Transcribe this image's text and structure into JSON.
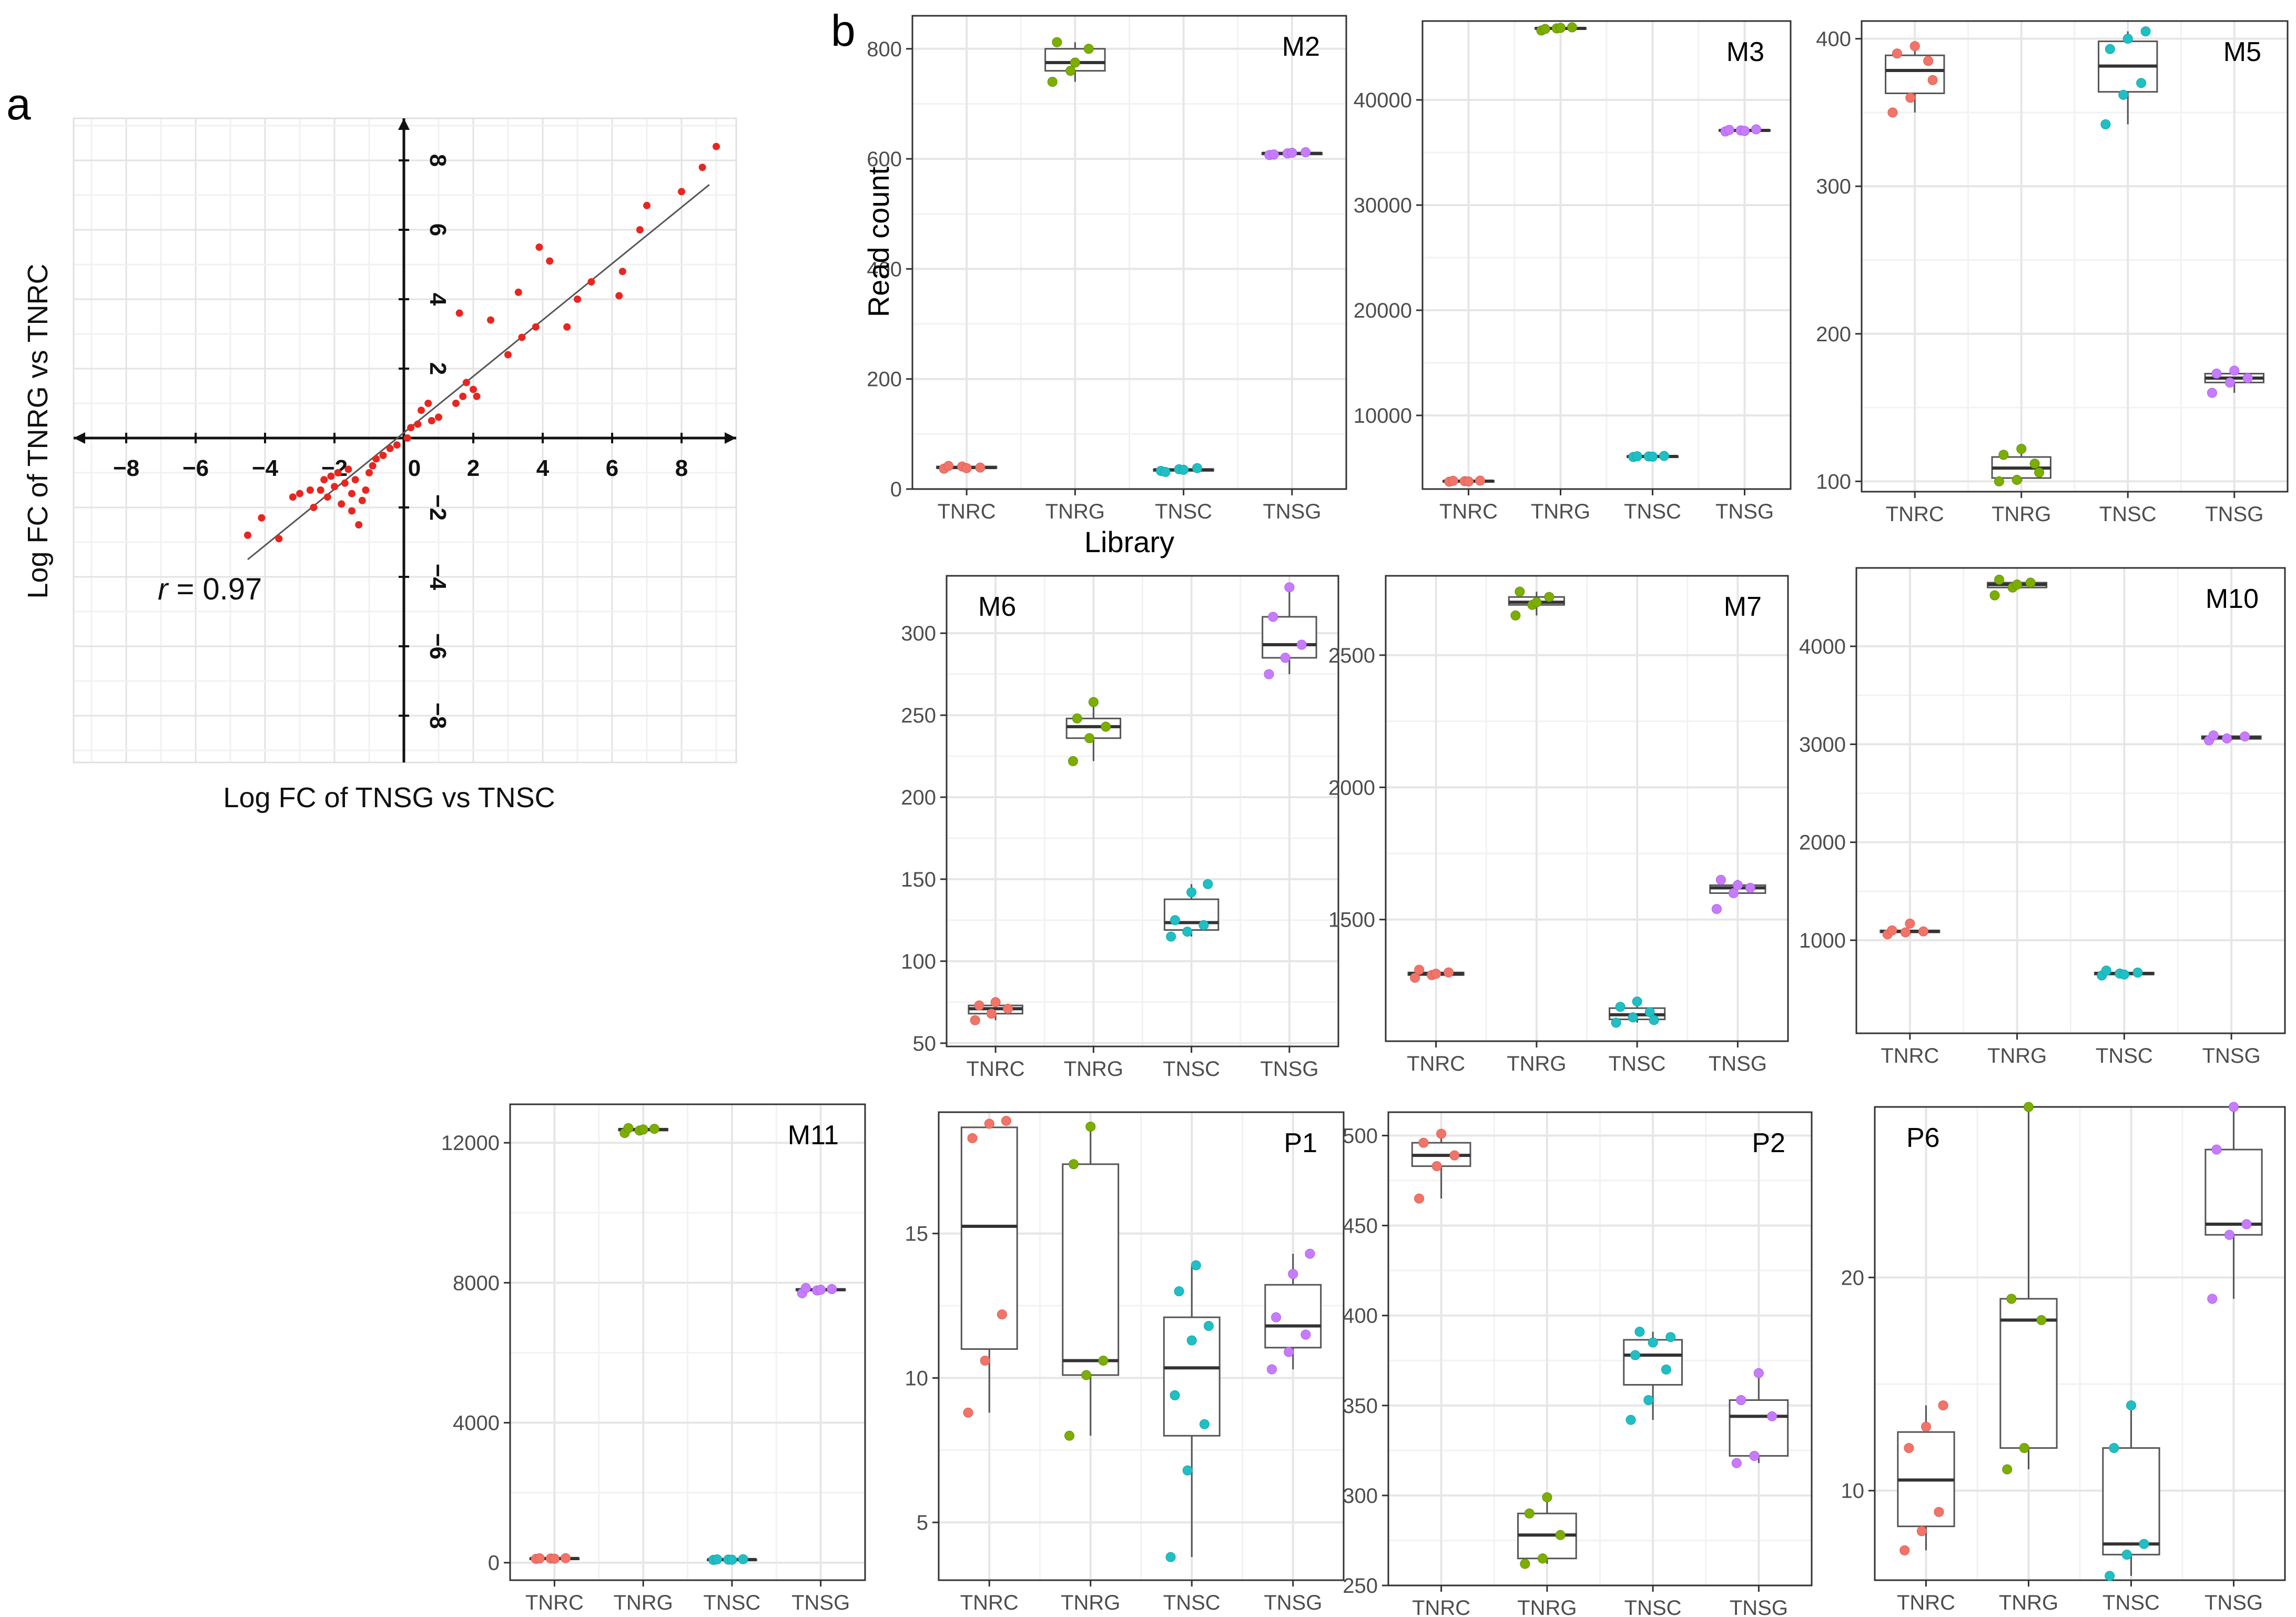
{
  "figure": {
    "panel_a_label": "a",
    "panel_b_label": "b"
  },
  "chart_data": [
    {
      "type": "scatter",
      "panel": "a",
      "title": "",
      "xlabel": "Log FC of TNSG vs TNSC",
      "ylabel": "Log FC of TNRG vs TNRC",
      "xlim": [
        -10,
        9.5
      ],
      "ylim": [
        -9.5,
        9.5
      ],
      "xticks": [
        -8,
        -6,
        -4,
        -2,
        0,
        2,
        4,
        6,
        8
      ],
      "yticks": [
        -8,
        -6,
        -4,
        -2,
        2,
        4,
        6,
        8
      ],
      "tick_labels_x": [
        "−8",
        "−6",
        "−4",
        "−2",
        "0",
        "2",
        "4",
        "6",
        "8"
      ],
      "tick_labels_y": [
        "−8",
        "−6",
        "−4",
        "−2",
        "2",
        "4",
        "6",
        "8"
      ],
      "annotation_r_symbol": "r",
      "annotation_r_value": " = 0.97",
      "regression_line": {
        "from": [
          -4.5,
          -3.5
        ],
        "to": [
          8.8,
          7.3
        ]
      },
      "point_color": "#e8261f",
      "points": [
        [
          -4.5,
          -2.8
        ],
        [
          -4.1,
          -2.3
        ],
        [
          -3.6,
          -2.9
        ],
        [
          -3.2,
          -1.7
        ],
        [
          -3.0,
          -1.6
        ],
        [
          -2.7,
          -1.5
        ],
        [
          -2.6,
          -2.0
        ],
        [
          -2.4,
          -1.5
        ],
        [
          -2.3,
          -1.2
        ],
        [
          -2.2,
          -1.7
        ],
        [
          -2.1,
          -1.1
        ],
        [
          -2.0,
          -1.4
        ],
        [
          -1.9,
          -1.0
        ],
        [
          -1.8,
          -1.9
        ],
        [
          -1.7,
          -1.3
        ],
        [
          -1.6,
          -0.9
        ],
        [
          -1.5,
          -1.6
        ],
        [
          -1.4,
          -1.2
        ],
        [
          -1.3,
          -2.5
        ],
        [
          -1.2,
          -1.8
        ],
        [
          -1.1,
          -1.5
        ],
        [
          -1.0,
          -1.0
        ],
        [
          -0.9,
          -0.8
        ],
        [
          -0.8,
          -0.6
        ],
        [
          -0.6,
          -0.5
        ],
        [
          -0.4,
          -0.3
        ],
        [
          -0.2,
          -0.2
        ],
        [
          0.2,
          0.3
        ],
        [
          0.4,
          0.4
        ],
        [
          0.5,
          0.8
        ],
        [
          0.7,
          1.0
        ],
        [
          0.8,
          0.5
        ],
        [
          1.0,
          0.6
        ],
        [
          1.5,
          1.0
        ],
        [
          1.7,
          1.2
        ],
        [
          1.8,
          1.6
        ],
        [
          2.0,
          1.4
        ],
        [
          2.1,
          1.2
        ],
        [
          1.6,
          3.6
        ],
        [
          2.5,
          3.4
        ],
        [
          3.0,
          2.4
        ],
        [
          3.4,
          2.9
        ],
        [
          3.3,
          4.2
        ],
        [
          3.8,
          3.2
        ],
        [
          4.2,
          5.1
        ],
        [
          4.7,
          3.2
        ],
        [
          5.0,
          4.0
        ],
        [
          5.4,
          4.5
        ],
        [
          6.2,
          4.1
        ],
        [
          6.3,
          4.8
        ],
        [
          6.8,
          6.0
        ],
        [
          7.0,
          6.7
        ],
        [
          8.0,
          7.1
        ],
        [
          8.6,
          7.8
        ],
        [
          9.0,
          8.4
        ],
        [
          3.9,
          5.5
        ],
        [
          -1.5,
          -2.1
        ],
        [
          0.1,
          0.0
        ]
      ]
    },
    {
      "type": "box",
      "panel": "b",
      "title": "M2",
      "xlabel": "Library",
      "ylabel": "Read count",
      "ylim": [
        0,
        860
      ],
      "yticks": [
        0,
        200,
        400,
        600,
        800
      ],
      "categories": [
        "TNRC",
        "TNRG",
        "TNSC",
        "TNSG"
      ],
      "points": [
        [
          37,
          41,
          39,
          42,
          38
        ],
        [
          740,
          760,
          800,
          812,
          775
        ],
        [
          33,
          36,
          38,
          31,
          35
        ],
        [
          607,
          610,
          612,
          608,
          611
        ]
      ]
    },
    {
      "type": "box",
      "panel": "b",
      "title": "M3",
      "xlabel": "",
      "ylabel": "",
      "ylim": [
        3000,
        47500
      ],
      "yticks": [
        10000,
        20000,
        30000,
        40000
      ],
      "categories": [
        "TNRC",
        "TNRG",
        "TNSC",
        "TNSG"
      ],
      "points": [
        [
          3700,
          3750,
          3800,
          3780,
          3720
        ],
        [
          46600,
          46800,
          46900,
          46750,
          46850
        ],
        [
          6050,
          6100,
          6150,
          6120,
          6080
        ],
        [
          37000,
          37100,
          37200,
          37150,
          37050
        ]
      ]
    },
    {
      "type": "box",
      "panel": "b",
      "title": "M5",
      "xlabel": "",
      "ylabel": "",
      "ylim": [
        93,
        412
      ],
      "yticks": [
        100,
        200,
        300,
        400
      ],
      "categories": [
        "TNRC",
        "TNRG",
        "TNSC",
        "TNSG"
      ],
      "points": [
        [
          350,
          360,
          385,
          390,
          395,
          372
        ],
        [
          100,
          101,
          112,
          118,
          122,
          106
        ],
        [
          342,
          362,
          370,
          393,
          400,
          405
        ],
        [
          160,
          167,
          170,
          173,
          175
        ]
      ]
    },
    {
      "type": "box",
      "panel": "b",
      "title": "M6",
      "xlabel": "",
      "ylabel": "",
      "ylim": [
        48,
        335
      ],
      "yticks": [
        50,
        100,
        150,
        200,
        250,
        300
      ],
      "categories": [
        "TNRC",
        "TNRG",
        "TNSC",
        "TNSG"
      ],
      "points": [
        [
          64,
          68,
          71,
          73,
          75
        ],
        [
          222,
          236,
          243,
          248,
          258
        ],
        [
          115,
          118,
          122,
          125,
          142,
          147
        ],
        [
          275,
          285,
          293,
          310,
          328
        ]
      ]
    },
    {
      "type": "box",
      "panel": "b",
      "title": "M7",
      "xlabel": "",
      "ylabel": "",
      "ylim": [
        1040,
        2800
      ],
      "yticks": [
        1500,
        2000,
        2500
      ],
      "categories": [
        "TNRC",
        "TNRG",
        "TNSC",
        "TNSG"
      ],
      "points": [
        [
          1280,
          1290,
          1300,
          1310,
          1295
        ],
        [
          2650,
          2690,
          2720,
          2740,
          2700
        ],
        [
          1110,
          1130,
          1150,
          1170,
          1190,
          1120
        ],
        [
          1540,
          1600,
          1620,
          1650,
          1630
        ]
      ]
    },
    {
      "type": "box",
      "panel": "b",
      "title": "M10",
      "xlabel": "",
      "ylabel": "",
      "ylim": [
        50,
        4800
      ],
      "yticks": [
        1000,
        2000,
        3000,
        4000
      ],
      "categories": [
        "TNRC",
        "TNRG",
        "TNSC",
        "TNSG"
      ],
      "points": [
        [
          1060,
          1080,
          1090,
          1100,
          1170
        ],
        [
          4520,
          4600,
          4650,
          4680,
          4630
        ],
        [
          640,
          660,
          670,
          690,
          650
        ],
        [
          3040,
          3060,
          3080,
          3090
        ]
      ]
    },
    {
      "type": "box",
      "panel": "b",
      "title": "M11",
      "xlabel": "",
      "ylabel": "",
      "ylim": [
        -500,
        13100
      ],
      "yticks": [
        0,
        4000,
        8000,
        12000
      ],
      "categories": [
        "TNRC",
        "TNRG",
        "TNSC",
        "TNSG"
      ],
      "points": [
        [
          110,
          120,
          130,
          125,
          115
        ],
        [
          12280,
          12350,
          12400,
          12420,
          12380
        ],
        [
          80,
          90,
          100,
          95,
          85
        ],
        [
          7700,
          7780,
          7820,
          7850,
          7800
        ]
      ]
    },
    {
      "type": "box",
      "panel": "b",
      "title": "P1",
      "xlabel": "",
      "ylabel": "",
      "ylim": [
        3.0,
        19.2
      ],
      "yticks": [
        5,
        10,
        15
      ],
      "categories": [
        "TNRC",
        "TNRG",
        "TNSC",
        "TNSG"
      ],
      "points": [
        [
          8.8,
          10.6,
          12.2,
          18.3,
          18.8,
          18.9
        ],
        [
          8.0,
          10.1,
          10.6,
          17.4,
          18.7
        ],
        [
          3.8,
          6.8,
          8.4,
          9.4,
          11.3,
          11.8,
          13.0,
          13.9
        ],
        [
          10.3,
          10.9,
          11.5,
          12.1,
          13.6,
          14.3
        ]
      ]
    },
    {
      "type": "box",
      "panel": "b",
      "title": "P2",
      "xlabel": "",
      "ylabel": "",
      "ylim": [
        250,
        513
      ],
      "yticks": [
        250,
        300,
        350,
        400,
        450,
        500
      ],
      "categories": [
        "TNRC",
        "TNRG",
        "TNSC",
        "TNSG"
      ],
      "points": [
        [
          465,
          483,
          489,
          496,
          501
        ],
        [
          262,
          265,
          278,
          290,
          299
        ],
        [
          342,
          353,
          370,
          378,
          385,
          388,
          391
        ],
        [
          318,
          322,
          344,
          353,
          368
        ]
      ]
    },
    {
      "type": "box",
      "panel": "b",
      "title": "P6",
      "xlabel": "",
      "ylabel": "",
      "ylim": [
        5.8,
        28.0
      ],
      "yticks": [
        10,
        20
      ],
      "categories": [
        "TNRC",
        "TNRG",
        "TNSC",
        "TNSG"
      ],
      "points": [
        [
          7.2,
          8.1,
          9.0,
          12.0,
          13.0,
          14.0
        ],
        [
          11.0,
          12.0,
          18.0,
          19.0,
          28.0
        ],
        [
          6.0,
          7.0,
          7.5,
          12.0,
          14.0
        ],
        [
          19.0,
          22.0,
          22.5,
          26.0,
          28.0
        ]
      ]
    }
  ]
}
